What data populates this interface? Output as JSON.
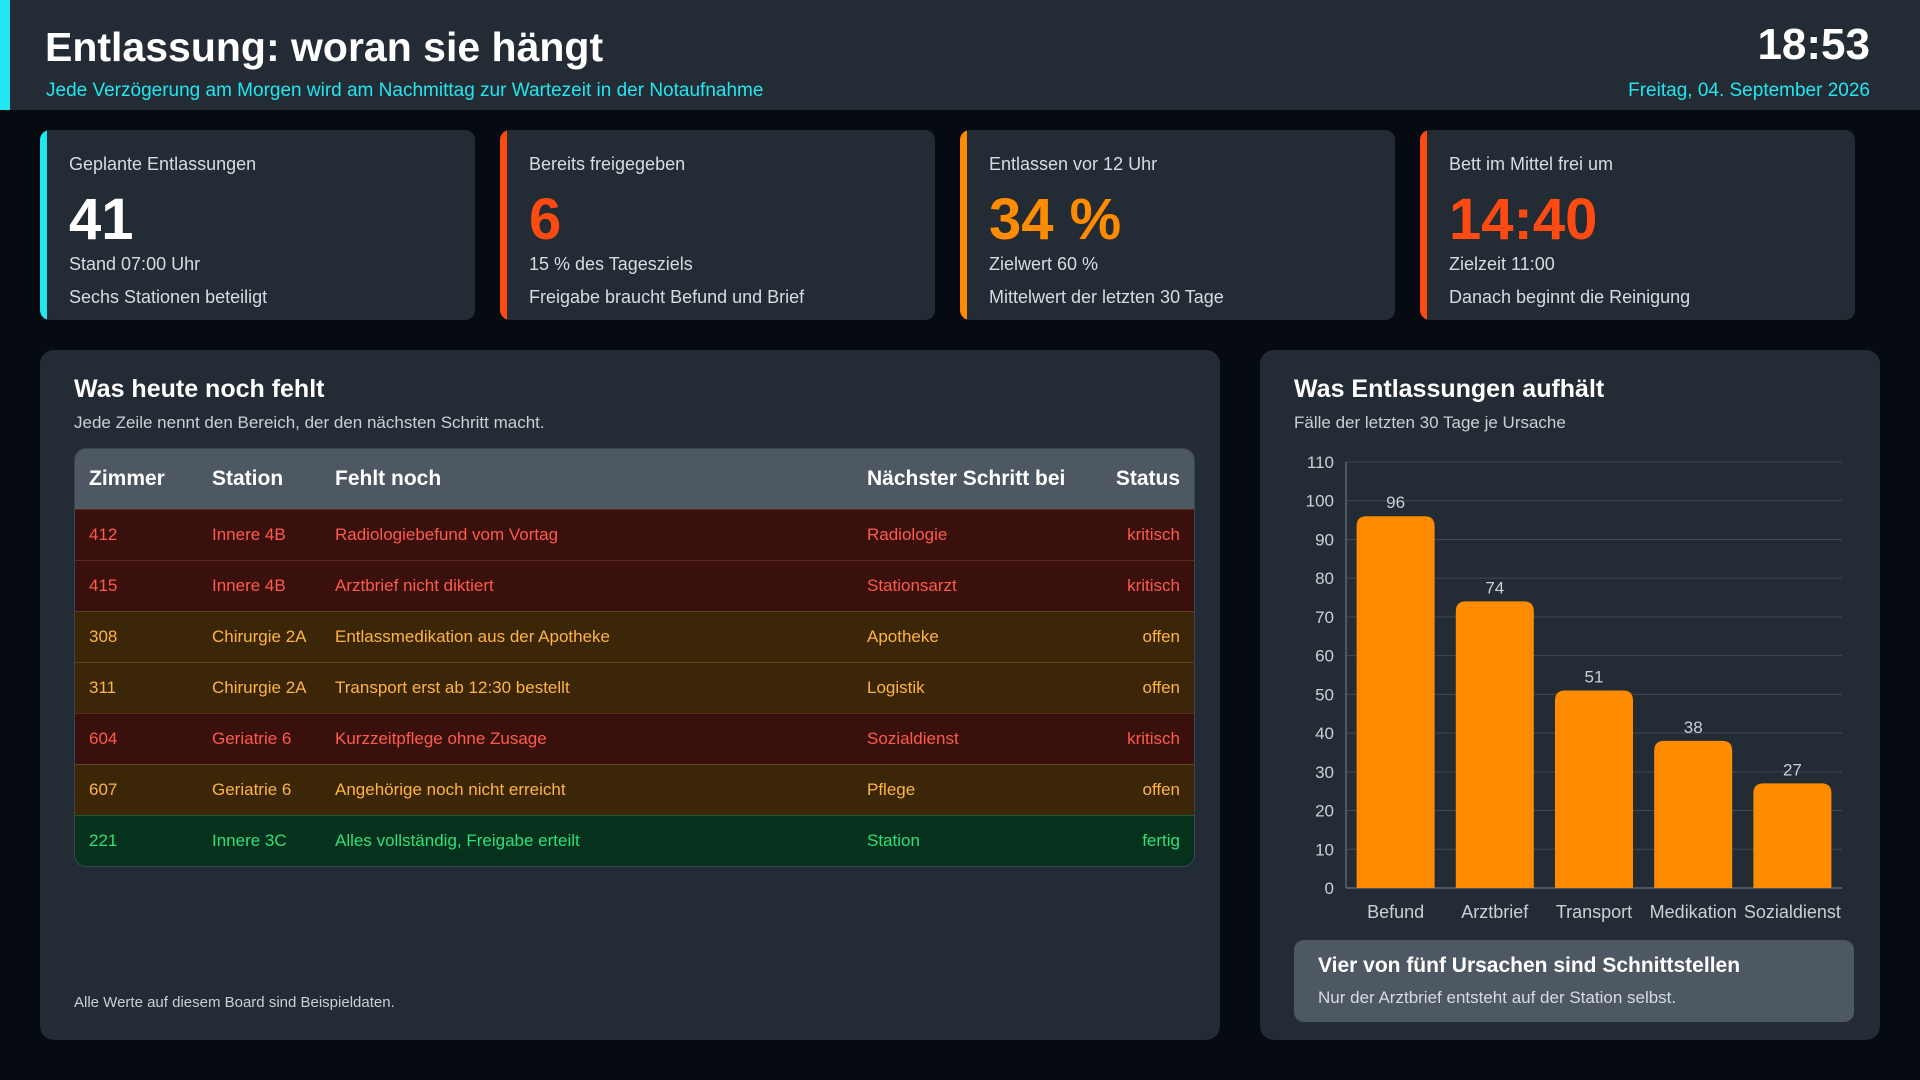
{
  "header": {
    "title": "Entlassung: woran sie hängt",
    "subtitle": "Jede Verzögerung am Morgen wird am Nachmittag zur Wartezeit in der Notaufnahme",
    "time": "18:53",
    "date": "Freitag, 04. September 2026",
    "accent_color": "#22e6f0"
  },
  "kpis": [
    {
      "label": "Geplante Entlassungen",
      "value": "41",
      "note1": "Stand 07:00 Uhr",
      "note2": "Sechs Stationen beteiligt",
      "color": "#22e6f0",
      "value_color": "#ffffff"
    },
    {
      "label": "Bereits freigegeben",
      "value": "6",
      "note1": "15 % des Tagesziels",
      "note2": "Freigabe braucht Befund und Brief",
      "color": "#ff4a12",
      "value_color": "#ff4a12"
    },
    {
      "label": "Entlassen vor 12 Uhr",
      "value": "34 %",
      "note1": "Zielwert 60 %",
      "note2": "Mittelwert der letzten 30 Tage",
      "color": "#ff8c00",
      "value_color": "#ff8c00"
    },
    {
      "label": "Bett im Mittel frei um",
      "value": "14:40",
      "note1": "Zielzeit 11:00",
      "note2": "Danach beginnt die Reinigung",
      "color": "#ff4a12",
      "value_color": "#ff4a12"
    }
  ],
  "missing": {
    "title": "Was heute noch fehlt",
    "subtitle": "Jede Zeile nennt den Bereich, der den nächsten Schritt macht.",
    "columns": [
      "Zimmer",
      "Station",
      "Fehlt noch",
      "Nächster Schritt bei",
      "Status"
    ],
    "rows": [
      {
        "room": "412",
        "station": "Innere 4B",
        "missing": "Radiologiebefund vom Vortag",
        "next": "Radiologie",
        "status": "kritisch",
        "level": "crit"
      },
      {
        "room": "415",
        "station": "Innere 4B",
        "missing": "Arztbrief nicht diktiert",
        "next": "Stationsarzt",
        "status": "kritisch",
        "level": "crit"
      },
      {
        "room": "308",
        "station": "Chirurgie 2A",
        "missing": "Entlassmedikation aus der Apotheke",
        "next": "Apotheke",
        "status": "offen",
        "level": "open"
      },
      {
        "room": "311",
        "station": "Chirurgie 2A",
        "missing": "Transport erst ab 12:30 bestellt",
        "next": "Logistik",
        "status": "offen",
        "level": "open"
      },
      {
        "room": "604",
        "station": "Geriatrie 6",
        "missing": "Kurzzeitpflege ohne Zusage",
        "next": "Sozialdienst",
        "status": "kritisch",
        "level": "crit"
      },
      {
        "room": "607",
        "station": "Geriatrie 6",
        "missing": "Angehörige noch nicht erreicht",
        "next": "Pflege",
        "status": "offen",
        "level": "open"
      },
      {
        "room": "221",
        "station": "Innere 3C",
        "missing": "Alles vollständig, Freigabe erteilt",
        "next": "Station",
        "status": "fertig",
        "level": "done"
      }
    ],
    "footnote": "Alle Werte auf diesem Board sind Beispieldaten."
  },
  "chart_panel": {
    "title": "Was Entlassungen aufhält",
    "subtitle": "Fälle der letzten 30 Tage je Ursache",
    "callout_title": "Vier von fünf Ursachen sind Schnittstellen",
    "callout_text": "Nur der Arztbrief entsteht auf der Station selbst."
  },
  "chart_data": {
    "type": "bar",
    "categories": [
      "Befund",
      "Arztbrief",
      "Transport",
      "Medikation",
      "Sozialdienst"
    ],
    "values": [
      96,
      74,
      51,
      38,
      27
    ],
    "ylim": [
      0,
      110
    ],
    "yticks": [
      0,
      10,
      20,
      30,
      40,
      50,
      60,
      70,
      80,
      90,
      100,
      110
    ],
    "grid": true,
    "bar_color": "#ff8c00",
    "title": "",
    "xlabel": "",
    "ylabel": ""
  }
}
